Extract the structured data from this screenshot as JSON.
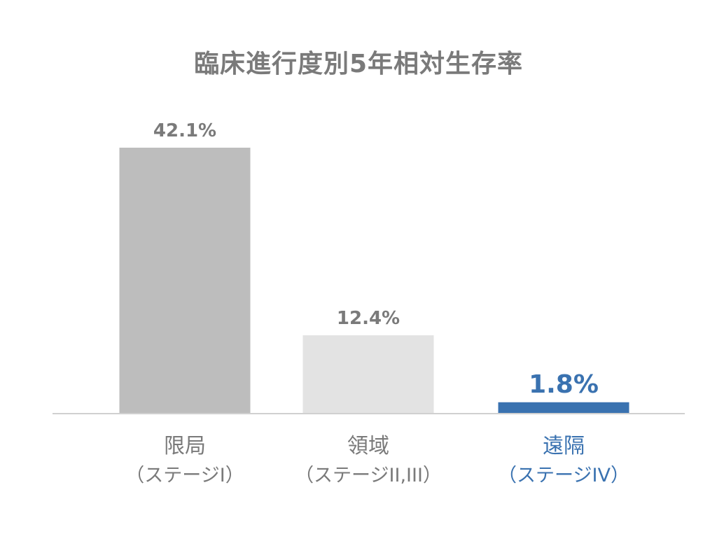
{
  "chart_data": {
    "type": "bar",
    "title": "臨床進行度別5年相対生存率",
    "categories": [
      "限局",
      "領域",
      "遠隔"
    ],
    "sublabels": [
      "（ステージI）",
      "（ステージII,III）",
      "（ステージIV）"
    ],
    "values": [
      42.1,
      12.4,
      1.8
    ],
    "value_labels": [
      "42.1%",
      "12.4%",
      "1.8%"
    ],
    "ylim": [
      0,
      45
    ],
    "grid": false,
    "legend": "none",
    "colors": [
      "#bdbdbd",
      "#e3e3e3",
      "#3a72b0"
    ],
    "label_colors": [
      "#7a7a7a",
      "#7a7a7a",
      "#3a72b0"
    ],
    "highlight_index": 2
  }
}
